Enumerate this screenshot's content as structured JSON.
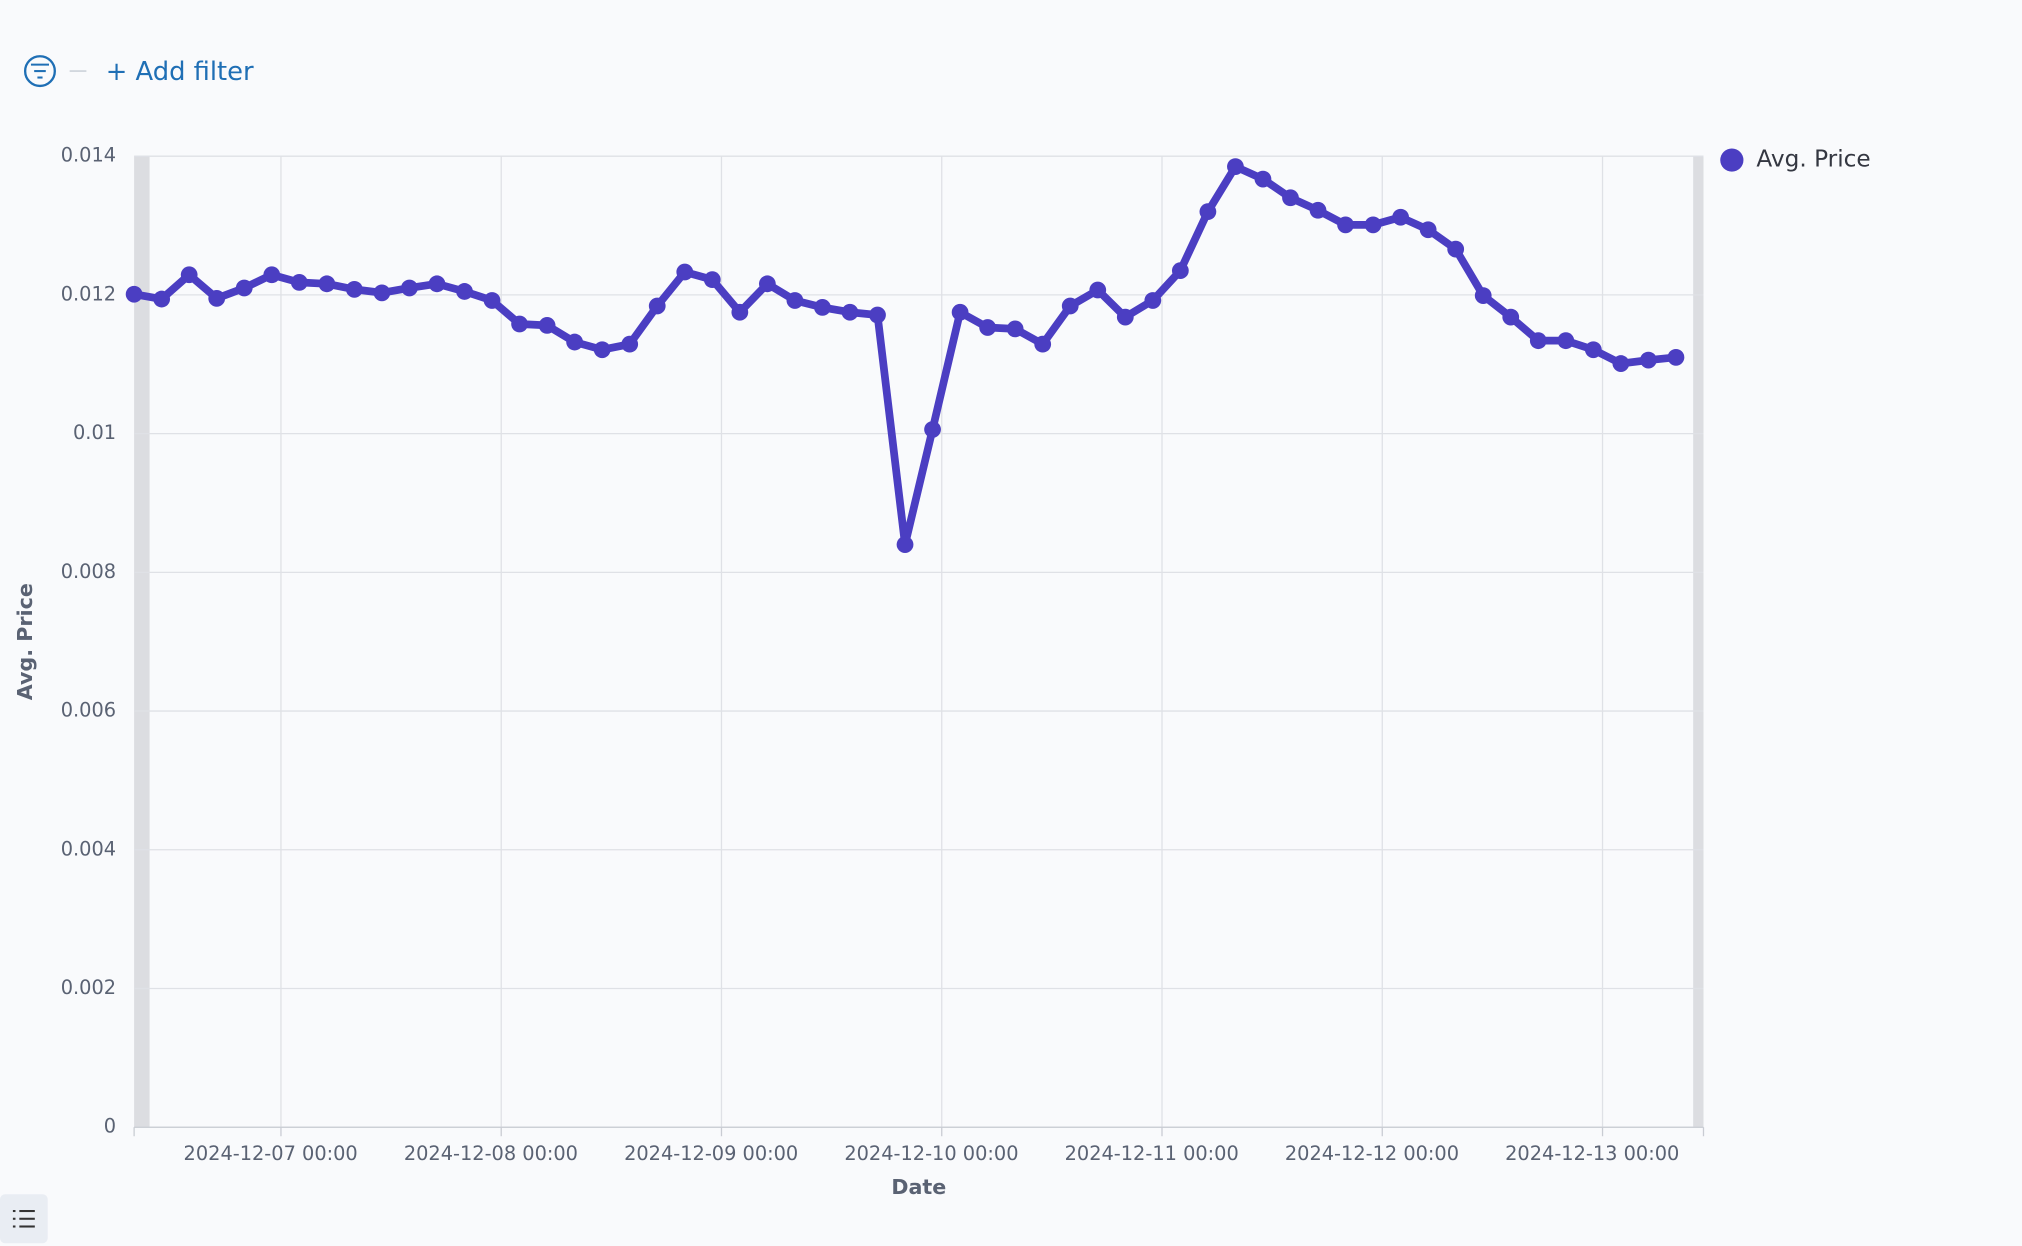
{
  "header": {
    "add_filter": "+ Add filter"
  },
  "chart_data": {
    "type": "line",
    "x_label": "Date",
    "y_label": "Avg. Price",
    "x": [
      "2024-12-06 08:00",
      "2024-12-06 11:00",
      "2024-12-06 14:00",
      "2024-12-06 17:00",
      "2024-12-06 20:00",
      "2024-12-06 23:00",
      "2024-12-07 02:00",
      "2024-12-07 05:00",
      "2024-12-07 08:00",
      "2024-12-07 11:00",
      "2024-12-07 14:00",
      "2024-12-07 17:00",
      "2024-12-07 20:00",
      "2024-12-07 23:00",
      "2024-12-08 02:00",
      "2024-12-08 05:00",
      "2024-12-08 08:00",
      "2024-12-08 11:00",
      "2024-12-08 14:00",
      "2024-12-08 17:00",
      "2024-12-08 20:00",
      "2024-12-08 23:00",
      "2024-12-09 02:00",
      "2024-12-09 05:00",
      "2024-12-09 08:00",
      "2024-12-09 11:00",
      "2024-12-09 14:00",
      "2024-12-09 17:00",
      "2024-12-09 20:00",
      "2024-12-09 23:00",
      "2024-12-10 02:00",
      "2024-12-10 05:00",
      "2024-12-10 08:00",
      "2024-12-10 11:00",
      "2024-12-10 14:00",
      "2024-12-10 17:00",
      "2024-12-10 20:00",
      "2024-12-10 23:00",
      "2024-12-11 02:00",
      "2024-12-11 05:00",
      "2024-12-11 08:00",
      "2024-12-11 11:00",
      "2024-12-11 14:00",
      "2024-12-11 17:00",
      "2024-12-11 20:00",
      "2024-12-11 23:00",
      "2024-12-12 02:00",
      "2024-12-12 05:00",
      "2024-12-12 08:00",
      "2024-12-12 11:00",
      "2024-12-12 14:00",
      "2024-12-12 17:00",
      "2024-12-12 20:00",
      "2024-12-12 23:00",
      "2024-12-13 02:00",
      "2024-12-13 05:00",
      "2024-12-13 08:00"
    ],
    "series": [
      {
        "name": "Avg. Price",
        "color": "#4b3ec2",
        "values": [
          0.01201,
          0.01194,
          0.01229,
          0.01195,
          0.0121,
          0.01229,
          0.01218,
          0.01216,
          0.01208,
          0.01203,
          0.0121,
          0.01216,
          0.01205,
          0.01192,
          0.01158,
          0.01156,
          0.01132,
          0.01121,
          0.01129,
          0.01184,
          0.01233,
          0.01222,
          0.01175,
          0.01216,
          0.01192,
          0.01182,
          0.01175,
          0.01171,
          0.0084,
          0.01006,
          0.01175,
          0.01153,
          0.01151,
          0.01129,
          0.01184,
          0.01207,
          0.01168,
          0.01192,
          0.01235,
          0.0132,
          0.01385,
          0.01367,
          0.0134,
          0.01322,
          0.01301,
          0.01301,
          0.01312,
          0.01294,
          0.01266,
          0.01199,
          0.01168,
          0.01134,
          0.01134,
          0.01121,
          0.01101,
          0.01106,
          0.0111
        ]
      }
    ],
    "xlim": [
      "2024-12-06 08:00",
      "2024-12-13 11:00"
    ],
    "xticks": [
      "2024-12-07 00:00",
      "2024-12-08 00:00",
      "2024-12-09 00:00",
      "2024-12-10 00:00",
      "2024-12-11 00:00",
      "2024-12-12 00:00",
      "2024-12-13 00:00"
    ],
    "ylim": [
      0,
      0.014
    ],
    "yticks": [
      0,
      0.002,
      0.004,
      0.006,
      0.008,
      0.01,
      0.012,
      0.014
    ],
    "grid": true,
    "legend": "top-right"
  }
}
